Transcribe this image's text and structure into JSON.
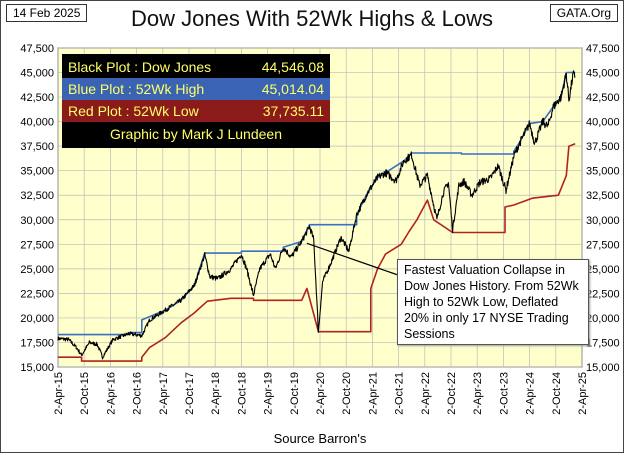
{
  "date_label": "14 Feb 2025",
  "source_label": "GATA.Org",
  "xlabel": "Source Barron's",
  "legend": {
    "rows": [
      {
        "label": "Black Plot :  Dow Jones",
        "value": "44,546.08"
      },
      {
        "label": "Blue Plot  :  52Wk High",
        "value": "45,014.04"
      },
      {
        "label": "Red Plot   :  52Wk Low",
        "value": "37,735.11"
      }
    ],
    "credit": "Graphic by Mark J Lundeen"
  },
  "annotation": "Fastest Valuation Collapse in Dow Jones History. From 52Wk High to 52Wk Low, Deflated 20% in only 17 NYSE Trading Sessions",
  "colors": {
    "plot_bg": "#ffffcc",
    "dow": "#000000",
    "high": "#3a6fc4",
    "low": "#b22222"
  },
  "chart_data": {
    "type": "line",
    "title": "Dow Jones With 52Wk Highs & Lows",
    "xlabel": "Source Barron's",
    "ylabel": "",
    "ylim": [
      15000,
      47500
    ],
    "xlim": [
      2015.25,
      2025.25
    ],
    "y_ticks": [
      "15,000",
      "17,500",
      "20,000",
      "22,500",
      "25,000",
      "27,500",
      "30,000",
      "32,500",
      "35,000",
      "37,500",
      "40,000",
      "42,500",
      "45,000",
      "47,500"
    ],
    "x_ticks": [
      "2-Apr-15",
      "2-Oct-15",
      "2-Apr-16",
      "2-Oct-16",
      "2-Apr-17",
      "2-Oct-17",
      "2-Apr-18",
      "2-Oct-18",
      "2-Apr-19",
      "2-Oct-19",
      "2-Apr-20",
      "2-Oct-20",
      "2-Apr-21",
      "2-Oct-21",
      "2-Apr-22",
      "2-Oct-22",
      "2-Apr-23",
      "2-Oct-23",
      "2-Apr-24",
      "2-Oct-24",
      "2-Apr-25"
    ],
    "series": [
      {
        "name": "Dow Jones",
        "color": "#000000",
        "points": [
          [
            2015.25,
            17900
          ],
          [
            2015.45,
            17800
          ],
          [
            2015.6,
            17000
          ],
          [
            2015.7,
            16200
          ],
          [
            2015.85,
            17500
          ],
          [
            2016.0,
            17300
          ],
          [
            2016.1,
            16000
          ],
          [
            2016.3,
            17800
          ],
          [
            2016.6,
            18400
          ],
          [
            2016.85,
            18200
          ],
          [
            2017.0,
            19800
          ],
          [
            2017.3,
            20800
          ],
          [
            2017.6,
            21800
          ],
          [
            2017.85,
            23300
          ],
          [
            2018.05,
            26400
          ],
          [
            2018.15,
            24200
          ],
          [
            2018.3,
            24000
          ],
          [
            2018.55,
            25000
          ],
          [
            2018.75,
            26500
          ],
          [
            2018.85,
            25000
          ],
          [
            2018.98,
            22300
          ],
          [
            2019.1,
            25000
          ],
          [
            2019.3,
            26500
          ],
          [
            2019.4,
            25000
          ],
          [
            2019.55,
            27200
          ],
          [
            2019.7,
            26200
          ],
          [
            2019.9,
            27800
          ],
          [
            2020.05,
            29300
          ],
          [
            2020.13,
            28000
          ],
          [
            2020.22,
            18600
          ],
          [
            2020.3,
            23700
          ],
          [
            2020.45,
            25500
          ],
          [
            2020.65,
            28200
          ],
          [
            2020.8,
            26800
          ],
          [
            2020.95,
            30500
          ],
          [
            2021.15,
            32700
          ],
          [
            2021.35,
            34300
          ],
          [
            2021.5,
            34800
          ],
          [
            2021.7,
            34000
          ],
          [
            2021.85,
            36000
          ],
          [
            2022.0,
            36600
          ],
          [
            2022.15,
            33500
          ],
          [
            2022.3,
            34500
          ],
          [
            2022.42,
            31500
          ],
          [
            2022.48,
            30000
          ],
          [
            2022.6,
            32700
          ],
          [
            2022.7,
            33800
          ],
          [
            2022.78,
            29000
          ],
          [
            2022.9,
            33500
          ],
          [
            2023.0,
            33900
          ],
          [
            2023.15,
            32500
          ],
          [
            2023.3,
            33800
          ],
          [
            2023.5,
            34200
          ],
          [
            2023.65,
            35500
          ],
          [
            2023.8,
            33000
          ],
          [
            2023.95,
            36500
          ],
          [
            2024.05,
            37700
          ],
          [
            2024.25,
            39800
          ],
          [
            2024.35,
            37800
          ],
          [
            2024.5,
            40000
          ],
          [
            2024.6,
            39500
          ],
          [
            2024.7,
            41500
          ],
          [
            2024.85,
            42500
          ],
          [
            2024.95,
            44900
          ],
          [
            2025.0,
            42200
          ],
          [
            2025.08,
            44800
          ],
          [
            2025.12,
            44546
          ]
        ]
      },
      {
        "name": "52Wk High",
        "color": "#3a6fc4",
        "points": [
          [
            2015.25,
            18300
          ],
          [
            2016.6,
            18300
          ],
          [
            2016.6,
            18500
          ],
          [
            2016.85,
            18500
          ],
          [
            2016.85,
            19800
          ],
          [
            2017.3,
            20800
          ],
          [
            2017.6,
            21800
          ],
          [
            2017.85,
            23300
          ],
          [
            2018.05,
            26600
          ],
          [
            2018.75,
            26600
          ],
          [
            2018.75,
            26800
          ],
          [
            2019.55,
            26800
          ],
          [
            2019.55,
            27200
          ],
          [
            2019.9,
            27800
          ],
          [
            2020.05,
            29500
          ],
          [
            2020.95,
            29500
          ],
          [
            2020.95,
            30500
          ],
          [
            2021.15,
            32700
          ],
          [
            2021.35,
            34300
          ],
          [
            2021.5,
            34800
          ],
          [
            2021.85,
            36000
          ],
          [
            2022.0,
            36800
          ],
          [
            2022.95,
            36800
          ],
          [
            2022.95,
            36700
          ],
          [
            2023.95,
            36700
          ],
          [
            2023.95,
            37000
          ],
          [
            2024.05,
            37800
          ],
          [
            2024.25,
            39800
          ],
          [
            2024.5,
            40000
          ],
          [
            2024.7,
            41500
          ],
          [
            2024.85,
            42500
          ],
          [
            2024.95,
            45000
          ],
          [
            2025.12,
            45014
          ]
        ]
      },
      {
        "name": "52Wk Low",
        "color": "#b22222",
        "points": [
          [
            2015.25,
            16000
          ],
          [
            2015.7,
            16000
          ],
          [
            2015.7,
            15600
          ],
          [
            2016.85,
            15600
          ],
          [
            2016.85,
            16000
          ],
          [
            2017.0,
            17000
          ],
          [
            2017.3,
            18000
          ],
          [
            2017.6,
            19500
          ],
          [
            2017.85,
            20500
          ],
          [
            2018.1,
            21700
          ],
          [
            2018.55,
            22000
          ],
          [
            2018.98,
            22000
          ],
          [
            2018.98,
            21800
          ],
          [
            2019.9,
            21800
          ],
          [
            2020.0,
            23000
          ],
          [
            2020.22,
            18600
          ],
          [
            2021.22,
            18600
          ],
          [
            2021.22,
            23000
          ],
          [
            2021.35,
            25000
          ],
          [
            2021.5,
            26500
          ],
          [
            2021.8,
            27500
          ],
          [
            2021.95,
            28800
          ],
          [
            2022.1,
            30000
          ],
          [
            2022.3,
            32000
          ],
          [
            2022.42,
            30000
          ],
          [
            2022.78,
            28700
          ],
          [
            2023.78,
            28700
          ],
          [
            2023.78,
            31300
          ],
          [
            2023.95,
            31500
          ],
          [
            2024.3,
            32200
          ],
          [
            2024.8,
            32500
          ],
          [
            2024.95,
            34500
          ],
          [
            2025.0,
            37500
          ],
          [
            2025.12,
            37735
          ]
        ]
      }
    ]
  }
}
